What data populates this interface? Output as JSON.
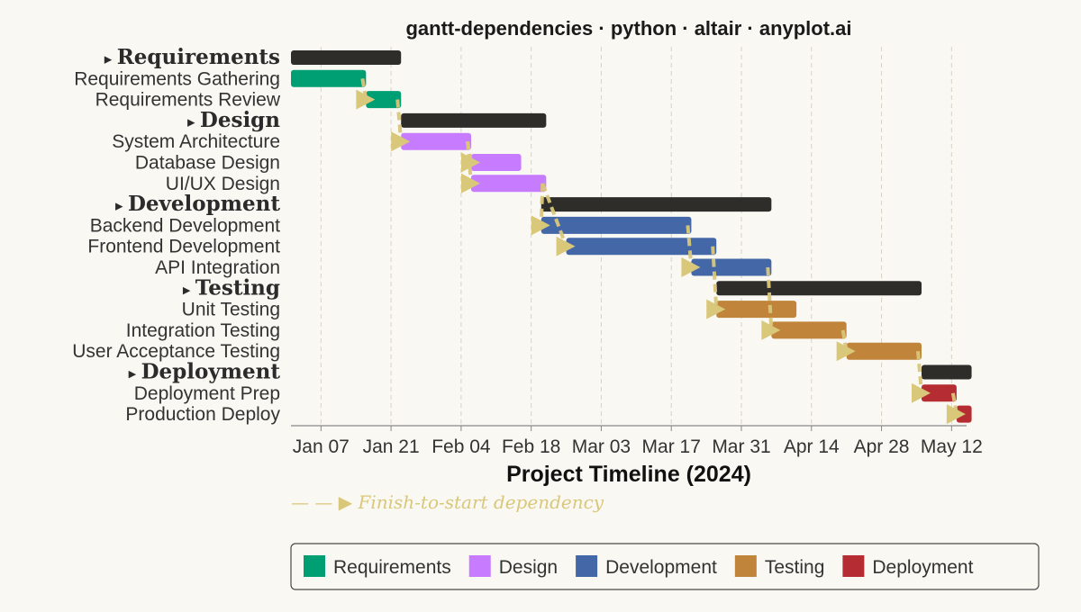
{
  "chart_data": {
    "type": "gantt",
    "title": "gantt-dependencies · python · altair · anyplot.ai",
    "xlabel": "Project Timeline (2024)",
    "ylabel": "",
    "x_domain": [
      "2024-01-01",
      "2024-05-15"
    ],
    "x_ticks": [
      {
        "date": "2024-01-07",
        "label": "Jan 07"
      },
      {
        "date": "2024-01-21",
        "label": "Jan 21"
      },
      {
        "date": "2024-02-04",
        "label": "Feb 04"
      },
      {
        "date": "2024-02-18",
        "label": "Feb 18"
      },
      {
        "date": "2024-03-03",
        "label": "Mar 03"
      },
      {
        "date": "2024-03-17",
        "label": "Mar 17"
      },
      {
        "date": "2024-03-31",
        "label": "Mar 31"
      },
      {
        "date": "2024-04-14",
        "label": "Apr 14"
      },
      {
        "date": "2024-04-28",
        "label": "Apr 28"
      },
      {
        "date": "2024-05-12",
        "label": "May 12"
      }
    ],
    "grid": "vertical-dashed",
    "group_marker": "▸",
    "rows": [
      {
        "id": "g-req",
        "label": "Requirements",
        "kind": "group",
        "group": "Requirements",
        "start": "2024-01-01",
        "end": "2024-01-22"
      },
      {
        "id": "t1",
        "label": "Requirements Gathering",
        "kind": "task",
        "group": "Requirements",
        "start": "2024-01-01",
        "end": "2024-01-15"
      },
      {
        "id": "t2",
        "label": "Requirements Review",
        "kind": "task",
        "group": "Requirements",
        "start": "2024-01-16",
        "end": "2024-01-22"
      },
      {
        "id": "g-des",
        "label": "Design",
        "kind": "group",
        "group": "Design",
        "start": "2024-01-23",
        "end": "2024-02-20"
      },
      {
        "id": "t3",
        "label": "System Architecture",
        "kind": "task",
        "group": "Design",
        "start": "2024-01-23",
        "end": "2024-02-05"
      },
      {
        "id": "t4",
        "label": "Database Design",
        "kind": "task",
        "group": "Design",
        "start": "2024-02-06",
        "end": "2024-02-15"
      },
      {
        "id": "t5",
        "label": "UI/UX Design",
        "kind": "task",
        "group": "Design",
        "start": "2024-02-06",
        "end": "2024-02-20"
      },
      {
        "id": "g-dev",
        "label": "Development",
        "kind": "group",
        "group": "Development",
        "start": "2024-02-20",
        "end": "2024-04-05"
      },
      {
        "id": "t6",
        "label": "Backend Development",
        "kind": "task",
        "group": "Development",
        "start": "2024-02-20",
        "end": "2024-03-20"
      },
      {
        "id": "t7",
        "label": "Frontend Development",
        "kind": "task",
        "group": "Development",
        "start": "2024-02-25",
        "end": "2024-03-25"
      },
      {
        "id": "t8",
        "label": "API Integration",
        "kind": "task",
        "group": "Development",
        "start": "2024-03-21",
        "end": "2024-04-05"
      },
      {
        "id": "g-tst",
        "label": "Testing",
        "kind": "group",
        "group": "Testing",
        "start": "2024-03-26",
        "end": "2024-05-05"
      },
      {
        "id": "t9",
        "label": "Unit Testing",
        "kind": "task",
        "group": "Testing",
        "start": "2024-03-26",
        "end": "2024-04-10"
      },
      {
        "id": "t10",
        "label": "Integration Testing",
        "kind": "task",
        "group": "Testing",
        "start": "2024-04-06",
        "end": "2024-04-20"
      },
      {
        "id": "t11",
        "label": "User Acceptance Testing",
        "kind": "task",
        "group": "Testing",
        "start": "2024-04-21",
        "end": "2024-05-05"
      },
      {
        "id": "g-dep",
        "label": "Deployment",
        "kind": "group",
        "group": "Deployment",
        "start": "2024-05-06",
        "end": "2024-05-15"
      },
      {
        "id": "t12",
        "label": "Deployment Prep",
        "kind": "task",
        "group": "Deployment",
        "start": "2024-05-06",
        "end": "2024-05-12"
      },
      {
        "id": "t13",
        "label": "Production Deploy",
        "kind": "task",
        "group": "Deployment",
        "start": "2024-05-13",
        "end": "2024-05-15"
      }
    ],
    "dependencies": [
      {
        "from": "t1",
        "to": "t2"
      },
      {
        "from": "t2",
        "to": "t3"
      },
      {
        "from": "t3",
        "to": "t4"
      },
      {
        "from": "t3",
        "to": "t5"
      },
      {
        "from": "t5",
        "to": "t6"
      },
      {
        "from": "t5",
        "to": "t7"
      },
      {
        "from": "t6",
        "to": "t8"
      },
      {
        "from": "t7",
        "to": "t9"
      },
      {
        "from": "t8",
        "to": "t10"
      },
      {
        "from": "t10",
        "to": "t11"
      },
      {
        "from": "t11",
        "to": "t12"
      },
      {
        "from": "t12",
        "to": "t13"
      }
    ],
    "annotation": "— — ▶ Finish-to-start dependency",
    "legend": {
      "position": "bottom",
      "entries": [
        {
          "name": "Requirements",
          "color": "#009e73"
        },
        {
          "name": "Design",
          "color": "#c77cff"
        },
        {
          "name": "Development",
          "color": "#4467a8"
        },
        {
          "name": "Testing",
          "color": "#c0843a"
        },
        {
          "name": "Deployment",
          "color": "#b52c32"
        }
      ]
    },
    "colors": {
      "group_bar": "#2e2d29",
      "dependency": "#d9c77a",
      "background": "#faf8f2"
    }
  }
}
